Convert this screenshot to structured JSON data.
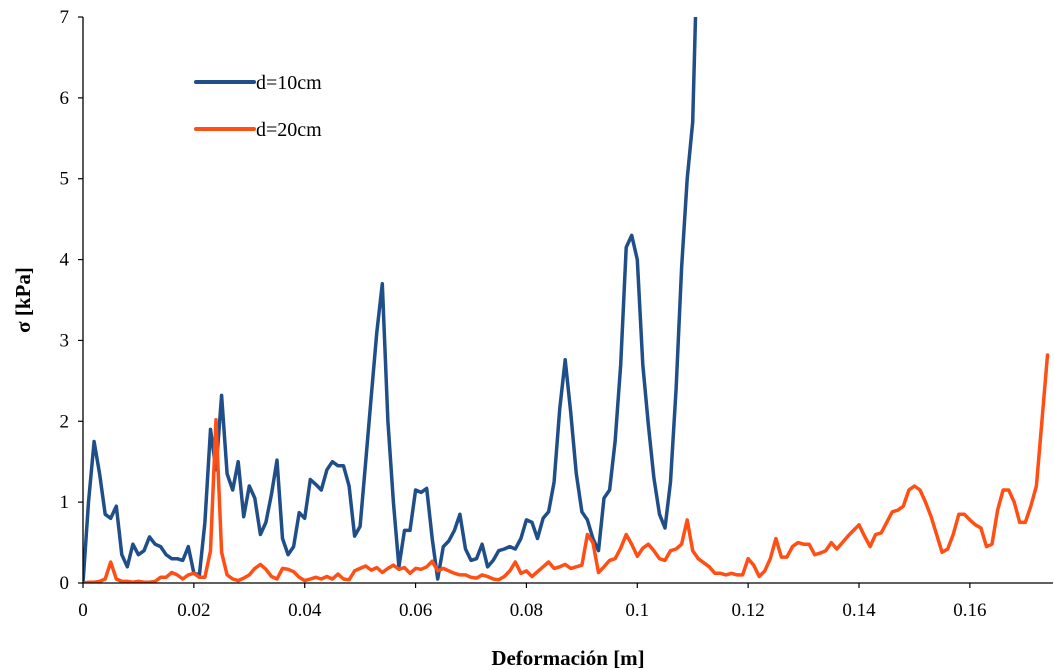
{
  "chart_data": {
    "type": "line",
    "title": "",
    "xlabel": "Deformación [m]",
    "ylabel": "σ [kPa]",
    "xlim": [
      0,
      0.175
    ],
    "ylim": [
      0,
      7
    ],
    "x_ticks": [
      0,
      0.02,
      0.04,
      0.06,
      0.08,
      0.1,
      0.12,
      0.14,
      0.16
    ],
    "x_tick_labels": [
      "0",
      "0.02",
      "0.04",
      "0.06",
      "0.08",
      "0.1",
      "0.12",
      "0.14",
      "0.16"
    ],
    "y_ticks": [
      0,
      1,
      2,
      3,
      4,
      5,
      6,
      7
    ],
    "y_tick_labels": [
      "0",
      "1",
      "2",
      "3",
      "4",
      "5",
      "6",
      "7"
    ],
    "grid": false,
    "legend_position": "top-left",
    "series": [
      {
        "name": "d=10cm",
        "color": "#1f4e89",
        "points": [
          [
            0,
            0
          ],
          [
            0.001,
            1.0
          ],
          [
            0.002,
            1.75
          ],
          [
            0.003,
            1.35
          ],
          [
            0.004,
            0.85
          ],
          [
            0.005,
            0.8
          ],
          [
            0.006,
            0.95
          ],
          [
            0.007,
            0.35
          ],
          [
            0.008,
            0.2
          ],
          [
            0.009,
            0.48
          ],
          [
            0.01,
            0.35
          ],
          [
            0.011,
            0.4
          ],
          [
            0.012,
            0.57
          ],
          [
            0.013,
            0.48
          ],
          [
            0.014,
            0.45
          ],
          [
            0.015,
            0.35
          ],
          [
            0.016,
            0.3
          ],
          [
            0.017,
            0.3
          ],
          [
            0.018,
            0.28
          ],
          [
            0.019,
            0.45
          ],
          [
            0.02,
            0.12
          ],
          [
            0.021,
            0.1
          ],
          [
            0.022,
            0.75
          ],
          [
            0.023,
            1.9
          ],
          [
            0.024,
            1.4
          ],
          [
            0.025,
            2.32
          ],
          [
            0.026,
            1.35
          ],
          [
            0.027,
            1.15
          ],
          [
            0.028,
            1.5
          ],
          [
            0.029,
            0.82
          ],
          [
            0.03,
            1.2
          ],
          [
            0.031,
            1.05
          ],
          [
            0.032,
            0.6
          ],
          [
            0.033,
            0.75
          ],
          [
            0.034,
            1.1
          ],
          [
            0.035,
            1.52
          ],
          [
            0.036,
            0.55
          ],
          [
            0.037,
            0.35
          ],
          [
            0.038,
            0.45
          ],
          [
            0.039,
            0.87
          ],
          [
            0.04,
            0.8
          ],
          [
            0.041,
            1.28
          ],
          [
            0.042,
            1.22
          ],
          [
            0.043,
            1.15
          ],
          [
            0.044,
            1.4
          ],
          [
            0.045,
            1.5
          ],
          [
            0.046,
            1.45
          ],
          [
            0.047,
            1.45
          ],
          [
            0.048,
            1.2
          ],
          [
            0.049,
            0.58
          ],
          [
            0.05,
            0.7
          ],
          [
            0.051,
            1.5
          ],
          [
            0.052,
            2.3
          ],
          [
            0.053,
            3.1
          ],
          [
            0.054,
            3.7
          ],
          [
            0.055,
            2.0
          ],
          [
            0.056,
            1.0
          ],
          [
            0.057,
            0.2
          ],
          [
            0.058,
            0.65
          ],
          [
            0.059,
            0.65
          ],
          [
            0.06,
            1.15
          ],
          [
            0.061,
            1.12
          ],
          [
            0.062,
            1.17
          ],
          [
            0.063,
            0.55
          ],
          [
            0.064,
            0.05
          ],
          [
            0.065,
            0.45
          ],
          [
            0.066,
            0.52
          ],
          [
            0.067,
            0.65
          ],
          [
            0.068,
            0.85
          ],
          [
            0.069,
            0.42
          ],
          [
            0.07,
            0.28
          ],
          [
            0.071,
            0.3
          ],
          [
            0.072,
            0.48
          ],
          [
            0.073,
            0.2
          ],
          [
            0.074,
            0.28
          ],
          [
            0.075,
            0.4
          ],
          [
            0.076,
            0.42
          ],
          [
            0.077,
            0.45
          ],
          [
            0.078,
            0.42
          ],
          [
            0.079,
            0.55
          ],
          [
            0.08,
            0.78
          ],
          [
            0.081,
            0.75
          ],
          [
            0.082,
            0.55
          ],
          [
            0.083,
            0.8
          ],
          [
            0.084,
            0.88
          ],
          [
            0.085,
            1.25
          ],
          [
            0.086,
            2.15
          ],
          [
            0.087,
            2.76
          ],
          [
            0.088,
            2.1
          ],
          [
            0.089,
            1.35
          ],
          [
            0.09,
            0.88
          ],
          [
            0.091,
            0.78
          ],
          [
            0.092,
            0.55
          ],
          [
            0.093,
            0.4
          ],
          [
            0.094,
            1.05
          ],
          [
            0.095,
            1.15
          ],
          [
            0.096,
            1.75
          ],
          [
            0.097,
            2.7
          ],
          [
            0.098,
            4.15
          ],
          [
            0.099,
            4.3
          ],
          [
            0.1,
            4.0
          ],
          [
            0.101,
            2.7
          ],
          [
            0.102,
            1.95
          ],
          [
            0.103,
            1.3
          ],
          [
            0.104,
            0.85
          ],
          [
            0.105,
            0.68
          ],
          [
            0.106,
            1.25
          ],
          [
            0.107,
            2.4
          ],
          [
            0.108,
            3.9
          ],
          [
            0.109,
            5.0
          ],
          [
            0.11,
            5.7
          ],
          [
            0.1105,
            7.0
          ]
        ]
      },
      {
        "name": "d=20cm",
        "color": "#ff4f14",
        "points": [
          [
            0,
            0
          ],
          [
            0.001,
            0.01
          ],
          [
            0.002,
            0.01
          ],
          [
            0.003,
            0.02
          ],
          [
            0.004,
            0.05
          ],
          [
            0.005,
            0.26
          ],
          [
            0.006,
            0.05
          ],
          [
            0.007,
            0.02
          ],
          [
            0.008,
            0.02
          ],
          [
            0.009,
            0.01
          ],
          [
            0.01,
            0.02
          ],
          [
            0.011,
            0.01
          ],
          [
            0.012,
            0.01
          ],
          [
            0.013,
            0.02
          ],
          [
            0.014,
            0.07
          ],
          [
            0.015,
            0.07
          ],
          [
            0.016,
            0.13
          ],
          [
            0.017,
            0.1
          ],
          [
            0.018,
            0.05
          ],
          [
            0.019,
            0.1
          ],
          [
            0.02,
            0.12
          ],
          [
            0.021,
            0.07
          ],
          [
            0.022,
            0.07
          ],
          [
            0.023,
            0.4
          ],
          [
            0.024,
            2.02
          ],
          [
            0.025,
            0.38
          ],
          [
            0.026,
            0.1
          ],
          [
            0.027,
            0.05
          ],
          [
            0.028,
            0.03
          ],
          [
            0.029,
            0.06
          ],
          [
            0.03,
            0.1
          ],
          [
            0.031,
            0.18
          ],
          [
            0.032,
            0.23
          ],
          [
            0.033,
            0.17
          ],
          [
            0.034,
            0.08
          ],
          [
            0.035,
            0.05
          ],
          [
            0.036,
            0.18
          ],
          [
            0.037,
            0.17
          ],
          [
            0.038,
            0.14
          ],
          [
            0.039,
            0.07
          ],
          [
            0.04,
            0.03
          ],
          [
            0.041,
            0.05
          ],
          [
            0.042,
            0.07
          ],
          [
            0.043,
            0.05
          ],
          [
            0.044,
            0.08
          ],
          [
            0.045,
            0.05
          ],
          [
            0.046,
            0.11
          ],
          [
            0.047,
            0.05
          ],
          [
            0.048,
            0.04
          ],
          [
            0.049,
            0.15
          ],
          [
            0.05,
            0.18
          ],
          [
            0.051,
            0.21
          ],
          [
            0.052,
            0.16
          ],
          [
            0.053,
            0.19
          ],
          [
            0.054,
            0.13
          ],
          [
            0.055,
            0.18
          ],
          [
            0.056,
            0.22
          ],
          [
            0.057,
            0.17
          ],
          [
            0.058,
            0.19
          ],
          [
            0.059,
            0.12
          ],
          [
            0.06,
            0.18
          ],
          [
            0.061,
            0.17
          ],
          [
            0.062,
            0.2
          ],
          [
            0.063,
            0.27
          ],
          [
            0.064,
            0.15
          ],
          [
            0.065,
            0.18
          ],
          [
            0.066,
            0.15
          ],
          [
            0.067,
            0.12
          ],
          [
            0.068,
            0.1
          ],
          [
            0.069,
            0.1
          ],
          [
            0.07,
            0.07
          ],
          [
            0.071,
            0.06
          ],
          [
            0.072,
            0.1
          ],
          [
            0.073,
            0.08
          ],
          [
            0.074,
            0.05
          ],
          [
            0.075,
            0.04
          ],
          [
            0.076,
            0.08
          ],
          [
            0.077,
            0.15
          ],
          [
            0.078,
            0.26
          ],
          [
            0.079,
            0.12
          ],
          [
            0.08,
            0.15
          ],
          [
            0.081,
            0.08
          ],
          [
            0.082,
            0.14
          ],
          [
            0.083,
            0.2
          ],
          [
            0.084,
            0.26
          ],
          [
            0.085,
            0.18
          ],
          [
            0.086,
            0.2
          ],
          [
            0.087,
            0.23
          ],
          [
            0.088,
            0.18
          ],
          [
            0.089,
            0.2
          ],
          [
            0.09,
            0.22
          ],
          [
            0.091,
            0.6
          ],
          [
            0.092,
            0.5
          ],
          [
            0.093,
            0.13
          ],
          [
            0.094,
            0.2
          ],
          [
            0.095,
            0.28
          ],
          [
            0.096,
            0.3
          ],
          [
            0.097,
            0.43
          ],
          [
            0.098,
            0.6
          ],
          [
            0.099,
            0.48
          ],
          [
            0.1,
            0.33
          ],
          [
            0.101,
            0.43
          ],
          [
            0.102,
            0.48
          ],
          [
            0.103,
            0.4
          ],
          [
            0.104,
            0.3
          ],
          [
            0.105,
            0.28
          ],
          [
            0.106,
            0.4
          ],
          [
            0.107,
            0.42
          ],
          [
            0.108,
            0.48
          ],
          [
            0.109,
            0.78
          ],
          [
            0.11,
            0.4
          ],
          [
            0.111,
            0.3
          ],
          [
            0.112,
            0.25
          ],
          [
            0.113,
            0.2
          ],
          [
            0.114,
            0.12
          ],
          [
            0.115,
            0.12
          ],
          [
            0.116,
            0.1
          ],
          [
            0.117,
            0.12
          ],
          [
            0.118,
            0.1
          ],
          [
            0.119,
            0.1
          ],
          [
            0.12,
            0.3
          ],
          [
            0.121,
            0.22
          ],
          [
            0.122,
            0.08
          ],
          [
            0.123,
            0.15
          ],
          [
            0.124,
            0.3
          ],
          [
            0.125,
            0.55
          ],
          [
            0.126,
            0.32
          ],
          [
            0.127,
            0.32
          ],
          [
            0.128,
            0.45
          ],
          [
            0.129,
            0.5
          ],
          [
            0.13,
            0.48
          ],
          [
            0.131,
            0.48
          ],
          [
            0.132,
            0.35
          ],
          [
            0.133,
            0.37
          ],
          [
            0.134,
            0.4
          ],
          [
            0.135,
            0.5
          ],
          [
            0.136,
            0.42
          ],
          [
            0.137,
            0.5
          ],
          [
            0.138,
            0.58
          ],
          [
            0.139,
            0.65
          ],
          [
            0.14,
            0.72
          ],
          [
            0.141,
            0.58
          ],
          [
            0.142,
            0.45
          ],
          [
            0.143,
            0.6
          ],
          [
            0.144,
            0.62
          ],
          [
            0.145,
            0.75
          ],
          [
            0.146,
            0.88
          ],
          [
            0.147,
            0.9
          ],
          [
            0.148,
            0.95
          ],
          [
            0.149,
            1.15
          ],
          [
            0.15,
            1.2
          ],
          [
            0.151,
            1.15
          ],
          [
            0.152,
            1.0
          ],
          [
            0.153,
            0.82
          ],
          [
            0.154,
            0.6
          ],
          [
            0.155,
            0.38
          ],
          [
            0.156,
            0.42
          ],
          [
            0.157,
            0.6
          ],
          [
            0.158,
            0.85
          ],
          [
            0.159,
            0.85
          ],
          [
            0.16,
            0.78
          ],
          [
            0.161,
            0.72
          ],
          [
            0.162,
            0.68
          ],
          [
            0.163,
            0.45
          ],
          [
            0.164,
            0.48
          ],
          [
            0.165,
            0.9
          ],
          [
            0.166,
            1.15
          ],
          [
            0.167,
            1.15
          ],
          [
            0.168,
            1.0
          ],
          [
            0.169,
            0.75
          ],
          [
            0.17,
            0.75
          ],
          [
            0.171,
            0.95
          ],
          [
            0.172,
            1.2
          ],
          [
            0.173,
            2.0
          ],
          [
            0.174,
            2.82
          ]
        ]
      }
    ]
  }
}
